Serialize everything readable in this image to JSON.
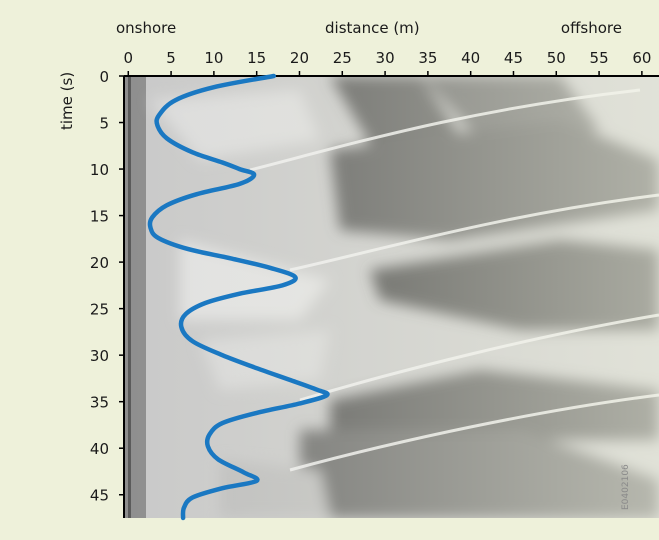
{
  "labels": {
    "onshore": "onshore",
    "offshore": "offshore",
    "xlabel": "distance (m)",
    "ylabel": "time (s)",
    "watermark": "E0402106"
  },
  "colors": {
    "background": "#eef1da",
    "curve": "#1a78c2",
    "axis": "#000000"
  },
  "chart_data": {
    "type": "line",
    "xlabel": "distance (m)",
    "ylabel": "time (s)",
    "x_ticks": [
      0,
      5,
      10,
      15,
      20,
      25,
      30,
      35,
      40,
      45,
      50,
      55,
      60
    ],
    "y_ticks": [
      0,
      5,
      10,
      15,
      20,
      25,
      30,
      35,
      40,
      45
    ],
    "xlim": [
      -0.5,
      62
    ],
    "ylim": [
      0,
      47.5
    ],
    "y_inverted": true,
    "background_image": "grayscale timestack photograph of breaking waves",
    "series": [
      {
        "color": "#1a78c2",
        "points": [
          [
            17,
            0
          ],
          [
            10,
            1.2
          ],
          [
            5.5,
            2.6
          ],
          [
            3.6,
            4.2
          ],
          [
            3.4,
            5.3
          ],
          [
            4.5,
            6.7
          ],
          [
            7.5,
            8.2
          ],
          [
            11,
            9.3
          ],
          [
            13,
            10
          ],
          [
            14.7,
            10.6
          ],
          [
            13,
            11.6
          ],
          [
            8,
            12.7
          ],
          [
            4.5,
            13.9
          ],
          [
            2.8,
            15.2
          ],
          [
            2.6,
            16.3
          ],
          [
            3.5,
            17.4
          ],
          [
            7,
            18.6
          ],
          [
            12,
            19.6
          ],
          [
            16.5,
            20.6
          ],
          [
            19.5,
            21.6
          ],
          [
            18,
            22.5
          ],
          [
            13,
            23.4
          ],
          [
            9,
            24.4
          ],
          [
            6.7,
            25.6
          ],
          [
            6.2,
            27
          ],
          [
            7.5,
            28.5
          ],
          [
            11,
            30
          ],
          [
            15,
            31.4
          ],
          [
            19,
            32.7
          ],
          [
            22,
            33.7
          ],
          [
            23.2,
            34.3
          ],
          [
            20,
            35.2
          ],
          [
            15,
            36.2
          ],
          [
            11,
            37.3
          ],
          [
            9.5,
            38.5
          ],
          [
            9.3,
            39.8
          ],
          [
            10.5,
            41.2
          ],
          [
            13.5,
            42.6
          ],
          [
            15,
            43.5
          ],
          [
            11,
            44.3
          ],
          [
            7.5,
            45.3
          ],
          [
            6.5,
            46.4
          ],
          [
            6.4,
            47.5
          ]
        ]
      }
    ]
  }
}
